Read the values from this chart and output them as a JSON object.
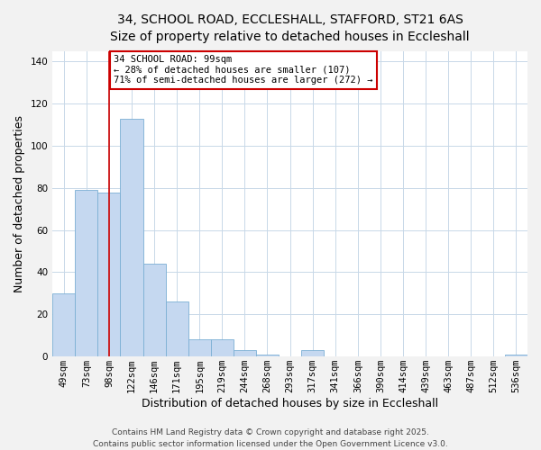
{
  "title": "34, SCHOOL ROAD, ECCLESHALL, STAFFORD, ST21 6AS",
  "subtitle": "Size of property relative to detached houses in Eccleshall",
  "xlabel": "Distribution of detached houses by size in Eccleshall",
  "ylabel": "Number of detached properties",
  "bar_labels": [
    "49sqm",
    "73sqm",
    "98sqm",
    "122sqm",
    "146sqm",
    "171sqm",
    "195sqm",
    "219sqm",
    "244sqm",
    "268sqm",
    "293sqm",
    "317sqm",
    "341sqm",
    "366sqm",
    "390sqm",
    "414sqm",
    "439sqm",
    "463sqm",
    "487sqm",
    "512sqm",
    "536sqm"
  ],
  "bar_values": [
    30,
    79,
    78,
    113,
    44,
    26,
    8,
    8,
    3,
    1,
    0,
    3,
    0,
    0,
    0,
    0,
    0,
    0,
    0,
    0,
    1
  ],
  "bar_color": "#c5d8f0",
  "bar_edge_color": "#7bafd4",
  "vline_x_index": 2,
  "vline_color": "#cc0000",
  "ylim": [
    0,
    145
  ],
  "yticks": [
    0,
    20,
    40,
    60,
    80,
    100,
    120,
    140
  ],
  "annotation_title": "34 SCHOOL ROAD: 99sqm",
  "annotation_line1": "← 28% of detached houses are smaller (107)",
  "annotation_line2": "71% of semi-detached houses are larger (272) →",
  "annotation_box_color": "#cc0000",
  "footer_line1": "Contains HM Land Registry data © Crown copyright and database right 2025.",
  "footer_line2": "Contains public sector information licensed under the Open Government Licence v3.0.",
  "background_color": "#f2f2f2",
  "plot_background_color": "#ffffff",
  "title_fontsize": 10,
  "subtitle_fontsize": 9,
  "axis_label_fontsize": 9,
  "tick_fontsize": 7.5,
  "footer_fontsize": 6.5
}
